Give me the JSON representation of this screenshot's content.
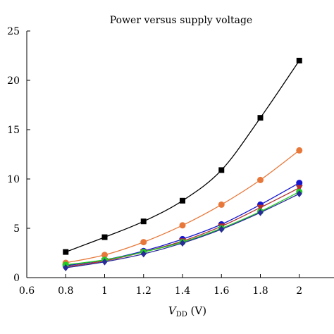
{
  "chart_data": {
    "type": "line",
    "title": "Power versus supply voltage",
    "xlabel_main": "V",
    "xlabel_sub": "DD",
    "xlabel_unit": " (V)",
    "ylabel": "",
    "xlim": [
      0.6,
      2.2
    ],
    "ylim": [
      0,
      25
    ],
    "xticks": [
      0.6,
      0.8,
      1.0,
      1.2,
      1.4,
      1.6,
      1.8,
      2.0
    ],
    "xtick_labels": [
      "0.6",
      "0.8",
      "1",
      "1.2",
      "1.4",
      "1.6",
      "1.8",
      "2"
    ],
    "yticks": [
      0,
      5,
      10,
      15,
      20,
      25
    ],
    "ytick_labels": [
      "0",
      "5",
      "10",
      "15",
      "20",
      "25"
    ],
    "grid": false,
    "x": [
      0.8,
      1.0,
      1.2,
      1.4,
      1.6,
      1.8,
      2.0
    ],
    "series": [
      {
        "values": [
          2.6,
          4.1,
          5.7,
          7.8,
          10.9,
          16.2,
          22.0
        ],
        "color": "#000000",
        "marker": "square"
      },
      {
        "values": [
          1.5,
          2.3,
          3.6,
          5.3,
          7.4,
          9.9,
          12.9
        ],
        "color": "#e8783a",
        "marker": "circle"
      },
      {
        "values": [
          1.2,
          1.8,
          2.7,
          3.9,
          5.4,
          7.4,
          9.6
        ],
        "color": "#1515d0",
        "marker": "circle"
      },
      {
        "values": [
          1.1,
          1.7,
          2.6,
          3.7,
          5.2,
          7.1,
          9.1
        ],
        "color": "#b03030",
        "marker": "triangle-down"
      },
      {
        "values": [
          1.3,
          1.8,
          2.6,
          3.6,
          5.0,
          6.7,
          8.7
        ],
        "color": "#22cc22",
        "marker": "circle"
      },
      {
        "values": [
          1.0,
          1.6,
          2.4,
          3.5,
          4.9,
          6.6,
          8.5
        ],
        "color": "#2a2a9a",
        "marker": "diamond"
      }
    ]
  }
}
